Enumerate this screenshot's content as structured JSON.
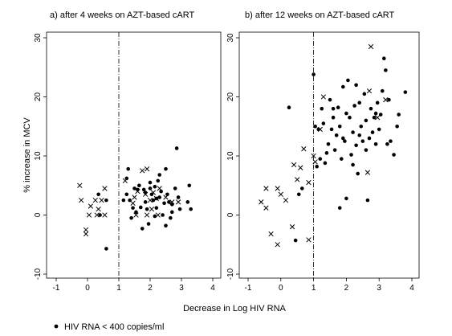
{
  "chart_data": [
    {
      "type": "scatter",
      "title": "a) after 4 weeks on AZT-based cART",
      "xlim": [
        -1,
        4
      ],
      "ylim": [
        -10,
        30
      ],
      "xticks": [
        -1,
        0,
        1,
        2,
        3,
        4
      ],
      "yticks": [
        -10,
        0,
        10,
        20,
        30
      ],
      "vline_x": 1,
      "series": [
        {
          "name": "HIV RNA < 400 copies/ml",
          "marker": "dot",
          "points": [
            [
              0.35,
              3.5
            ],
            [
              0.6,
              2.5
            ],
            [
              0.4,
              0
            ],
            [
              0.6,
              -5.7
            ],
            [
              1.15,
              2.5
            ],
            [
              1.25,
              3.5
            ],
            [
              1.25,
              6.2
            ],
            [
              1.35,
              2.5
            ],
            [
              1.4,
              -0.5
            ],
            [
              1.45,
              1.2
            ],
            [
              1.5,
              4.5
            ],
            [
              1.55,
              0.5
            ],
            [
              1.65,
              5
            ],
            [
              1.7,
              1.3
            ],
            [
              1.75,
              -2.3
            ],
            [
              1.8,
              4.3
            ],
            [
              1.85,
              2.2
            ],
            [
              1.9,
              1
            ],
            [
              1.95,
              -1.5
            ],
            [
              2,
              4.5
            ],
            [
              2.05,
              3.5
            ],
            [
              2.1,
              2.5
            ],
            [
              2.15,
              -0.2
            ],
            [
              2.2,
              1.2
            ],
            [
              2.25,
              5.8
            ],
            [
              2.3,
              3
            ],
            [
              2.35,
              4
            ],
            [
              2.4,
              0
            ],
            [
              2.45,
              2
            ],
            [
              2.5,
              7.8
            ],
            [
              2.55,
              3.5
            ],
            [
              2.6,
              2.2
            ],
            [
              2.65,
              -0.5
            ],
            [
              2.7,
              1.8
            ],
            [
              2.8,
              4.5
            ],
            [
              2.85,
              11.3
            ],
            [
              2.9,
              3
            ],
            [
              2.95,
              1
            ],
            [
              3.2,
              2.2
            ],
            [
              3.25,
              5
            ],
            [
              3.3,
              1
            ],
            [
              1.3,
              7.8
            ],
            [
              1.6,
              4.3
            ],
            [
              2.0,
              5.5
            ],
            [
              2.3,
              6.8
            ],
            [
              2.5,
              -1.8
            ],
            [
              2.7,
              0.5
            ],
            [
              2.2,
              2.8
            ],
            [
              1.85,
              3.8
            ],
            [
              2.15,
              4.8
            ]
          ]
        },
        {
          "name": "",
          "marker": "cross",
          "points": [
            [
              -0.25,
              5
            ],
            [
              -0.2,
              2.5
            ],
            [
              -0.05,
              -2.5
            ],
            [
              -0.05,
              -3.2
            ],
            [
              0.05,
              0
            ],
            [
              0.1,
              1.5
            ],
            [
              0.25,
              2.5
            ],
            [
              0.3,
              0
            ],
            [
              0.35,
              1
            ],
            [
              0.45,
              2.5
            ],
            [
              0.55,
              4.5
            ],
            [
              0.55,
              0
            ],
            [
              1.2,
              5.8
            ],
            [
              1.5,
              3
            ],
            [
              1.55,
              0
            ],
            [
              1.6,
              4
            ],
            [
              1.75,
              7.5
            ],
            [
              1.9,
              7.8
            ],
            [
              1.85,
              3.5
            ],
            [
              1.9,
              0
            ],
            [
              2.05,
              1
            ],
            [
              2.1,
              3.8
            ],
            [
              2.2,
              2.8
            ],
            [
              2.25,
              0
            ],
            [
              2.3,
              4.5
            ],
            [
              2.5,
              3
            ],
            [
              2.7,
              2.2
            ],
            [
              2.9,
              2.2
            ],
            [
              1.45,
              2
            ],
            [
              2.0,
              2.5
            ]
          ]
        }
      ]
    },
    {
      "type": "scatter",
      "title": "b) after 12 weeks on AZT-based cART",
      "xlim": [
        -1,
        4
      ],
      "ylim": [
        -10,
        30
      ],
      "xticks": [
        -1,
        0,
        1,
        2,
        3,
        4
      ],
      "yticks": [
        -10,
        0,
        10,
        20,
        30
      ],
      "vline_x": 1,
      "series": [
        {
          "name": "HIV RNA < 400 copies/ml",
          "marker": "dot",
          "points": [
            [
              0.45,
              -4.3
            ],
            [
              0.55,
              3.5
            ],
            [
              0.65,
              4.5
            ],
            [
              1.0,
              23.8
            ],
            [
              1.05,
              15
            ],
            [
              1.1,
              8.2
            ],
            [
              1.15,
              14.5
            ],
            [
              1.2,
              9.5
            ],
            [
              1.25,
              18
            ],
            [
              1.35,
              8.8
            ],
            [
              1.4,
              10.5
            ],
            [
              1.45,
              12
            ],
            [
              1.5,
              19.5
            ],
            [
              1.55,
              14.5
            ],
            [
              1.6,
              16.5
            ],
            [
              1.65,
              11
            ],
            [
              1.7,
              13.5
            ],
            [
              1.75,
              18.2
            ],
            [
              1.8,
              1.2
            ],
            [
              1.8,
              15
            ],
            [
              1.85,
              9.5
            ],
            [
              1.9,
              21.7
            ],
            [
              1.95,
              12.5
            ],
            [
              2.0,
              2.8
            ],
            [
              2.05,
              22.8
            ],
            [
              2.1,
              16.5
            ],
            [
              2.15,
              10.2
            ],
            [
              2.2,
              14
            ],
            [
              2.25,
              18.5
            ],
            [
              2.3,
              11.8
            ],
            [
              2.35,
              7
            ],
            [
              2.4,
              19
            ],
            [
              2.45,
              15
            ],
            [
              2.5,
              12.5
            ],
            [
              2.55,
              20.5
            ],
            [
              2.6,
              16
            ],
            [
              2.65,
              2.5
            ],
            [
              2.7,
              13
            ],
            [
              2.75,
              18
            ],
            [
              2.8,
              14
            ],
            [
              2.85,
              16.5
            ],
            [
              2.9,
              12
            ],
            [
              2.95,
              19
            ],
            [
              3.0,
              14.5
            ],
            [
              3.05,
              17
            ],
            [
              3.15,
              26.5
            ],
            [
              3.2,
              24.5
            ],
            [
              3.25,
              12
            ],
            [
              3.3,
              19.5
            ],
            [
              3.35,
              12.5
            ],
            [
              3.45,
              10.2
            ],
            [
              3.55,
              15
            ],
            [
              3.6,
              17
            ],
            [
              3.8,
              20.8
            ],
            [
              0.25,
              18.2
            ],
            [
              1.6,
              18
            ],
            [
              2.0,
              17.2
            ],
            [
              2.2,
              8.5
            ],
            [
              2.4,
              13.5
            ],
            [
              2.6,
              11
            ],
            [
              2.9,
              17.2
            ],
            [
              3.1,
              21
            ],
            [
              1.3,
              15.5
            ],
            [
              1.9,
              13
            ],
            [
              2.3,
              22
            ]
          ]
        },
        {
          "name": "",
          "marker": "cross",
          "points": [
            [
              -0.6,
              2.2
            ],
            [
              -0.45,
              4.5
            ],
            [
              -0.45,
              1.2
            ],
            [
              -0.3,
              -3.2
            ],
            [
              -0.1,
              -5
            ],
            [
              -0.1,
              4.5
            ],
            [
              0.0,
              3.5
            ],
            [
              0.15,
              2.5
            ],
            [
              0.35,
              -2
            ],
            [
              0.4,
              8.5
            ],
            [
              0.5,
              6
            ],
            [
              0.6,
              8
            ],
            [
              0.7,
              11.2
            ],
            [
              0.85,
              -4.2
            ],
            [
              0.85,
              5.5
            ],
            [
              1.0,
              10
            ],
            [
              1.2,
              14.5
            ],
            [
              2.65,
              7.2
            ],
            [
              2.75,
              28.5
            ],
            [
              2.7,
              21
            ],
            [
              2.95,
              16.5
            ],
            [
              3.2,
              19.5
            ],
            [
              1.05,
              9
            ],
            [
              1.3,
              20
            ]
          ]
        }
      ]
    }
  ],
  "ylabel": "% increase in MCV",
  "xlabel": "Decrease in Log HIV RNA",
  "legend": {
    "label": "HIV RNA < 400 copies/ml",
    "placement": "bottom-left"
  }
}
